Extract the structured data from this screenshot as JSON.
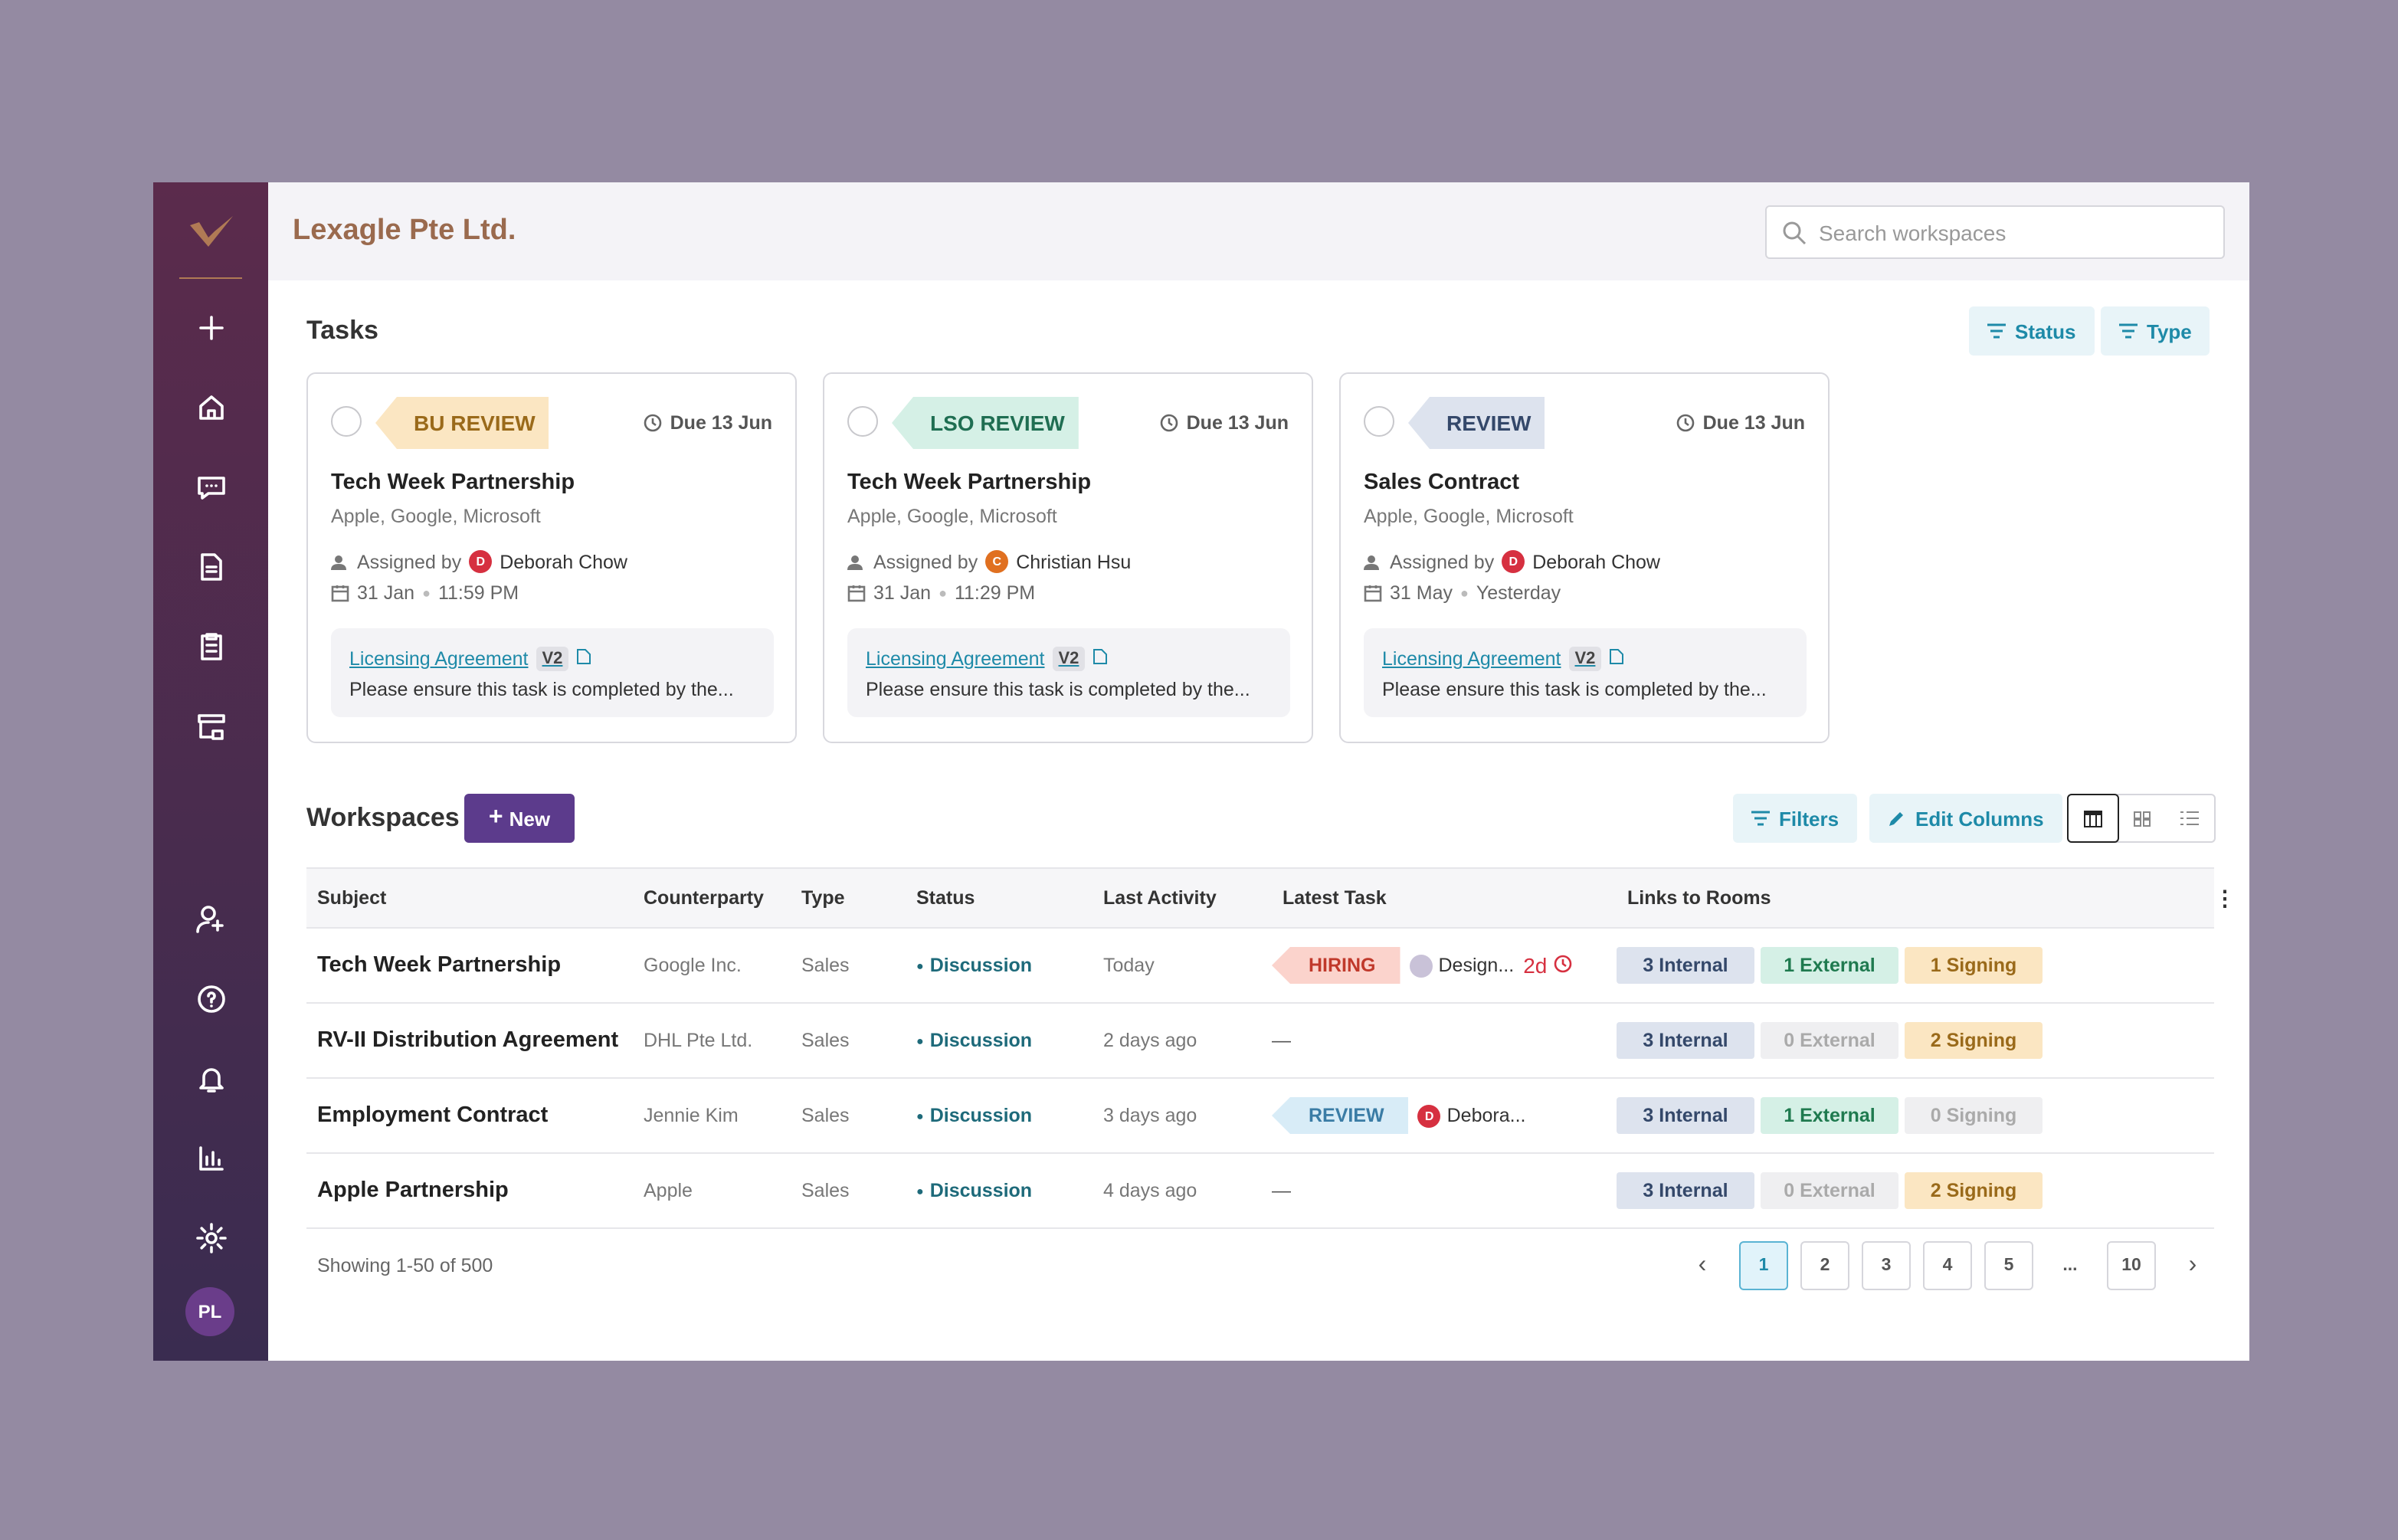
{
  "header": {
    "company": "Lexagle Pte Ltd.",
    "search_placeholder": "Search workspaces"
  },
  "sidebar": {
    "avatar": "PL"
  },
  "tasks": {
    "title": "Tasks",
    "filters": [
      "Status",
      "Type"
    ],
    "cards": [
      {
        "tag": {
          "label": "BU REVIEW",
          "bg": "#fbe6c2",
          "fg": "#9a6a1a"
        },
        "due": "Due 13 Jun",
        "title": "Tech Week Partnership",
        "parties": "Apple, Google, Microsoft",
        "assigned_label": "Assigned by",
        "avatar": {
          "initial": "D",
          "color": "#d63040"
        },
        "assignee": "Deborah Chow",
        "date": "31 Jan",
        "time": "11:59 PM",
        "doc": "Licensing Agreement",
        "version": "V2",
        "note": "Please ensure this task is completed by the..."
      },
      {
        "tag": {
          "label": "LSO REVIEW",
          "bg": "#d5f0e6",
          "fg": "#1f6e52"
        },
        "due": "Due 13 Jun",
        "title": "Tech Week Partnership",
        "parties": "Apple, Google, Microsoft",
        "assigned_label": "Assigned by",
        "avatar": {
          "initial": "C",
          "color": "#e07020"
        },
        "assignee": "Christian Hsu",
        "date": "31 Jan",
        "time": "11:29 PM",
        "doc": "Licensing Agreement",
        "version": "V2",
        "note": "Please ensure this task is completed by the..."
      },
      {
        "tag": {
          "label": "REVIEW",
          "bg": "#dde3ee",
          "fg": "#34486a"
        },
        "due": "Due 13 Jun",
        "title": "Sales Contract",
        "parties": "Apple, Google, Microsoft",
        "assigned_label": "Assigned by",
        "avatar": {
          "initial": "D",
          "color": "#d63040"
        },
        "assignee": "Deborah Chow",
        "date": "31 May",
        "time": "Yesterday",
        "doc": "Licensing Agreement",
        "version": "V2",
        "note": "Please ensure this task is completed by the..."
      }
    ]
  },
  "workspaces": {
    "title": "Workspaces",
    "new_button": "New",
    "filters_button": "Filters",
    "edit_button": "Edit Columns",
    "columns": [
      "Subject",
      "Counterparty",
      "Type",
      "Status",
      "Last Activity",
      "Latest Task",
      "Links to Rooms"
    ],
    "rows": [
      {
        "subject": "Tech Week Partnership",
        "counterparty": "Google Inc.",
        "type": "Sales",
        "status": "Discussion",
        "last_activity": "Today",
        "latest_task": {
          "tag": {
            "label": "HIRING",
            "bg": "#fbd3cc",
            "fg": "#c0392b"
          },
          "avatar": {
            "initial": "",
            "color": "#c9c2d8"
          },
          "assignee": "Design...",
          "due": "2d"
        },
        "links": [
          {
            "label": "3 Internal",
            "bg": "#dde3ee",
            "fg": "#34486a"
          },
          {
            "label": "1 External",
            "bg": "#d5f0e6",
            "fg": "#1f7a4f"
          },
          {
            "label": "1 Signing",
            "bg": "#fbe6c2",
            "fg": "#9a6a1a"
          }
        ]
      },
      {
        "subject": "RV-II Distribution Agreement",
        "counterparty": "DHL Pte Ltd.",
        "type": "Sales",
        "status": "Discussion",
        "last_activity": "2 days ago",
        "latest_task": "—",
        "links": [
          {
            "label": "3 Internal",
            "bg": "#dde3ee",
            "fg": "#34486a"
          },
          {
            "label": "0 External",
            "bg": "#efeff1",
            "fg": "#aaaaaa"
          },
          {
            "label": "2 Signing",
            "bg": "#fbe6c2",
            "fg": "#9a6a1a"
          }
        ]
      },
      {
        "subject": "Employment Contract",
        "counterparty": "Jennie Kim",
        "type": "Sales",
        "status": "Discussion",
        "last_activity": "3 days ago",
        "latest_task": {
          "tag": {
            "label": "REVIEW",
            "bg": "#d8ecf7",
            "fg": "#3a7ca5"
          },
          "avatar": {
            "initial": "D",
            "color": "#d63040"
          },
          "assignee": "Debora..."
        },
        "links": [
          {
            "label": "3 Internal",
            "bg": "#dde3ee",
            "fg": "#34486a"
          },
          {
            "label": "1 External",
            "bg": "#d5f0e6",
            "fg": "#1f7a4f"
          },
          {
            "label": "0 Signing",
            "bg": "#efeff1",
            "fg": "#aaaaaa"
          }
        ]
      },
      {
        "subject": "Apple Partnership",
        "counterparty": "Apple",
        "type": "Sales",
        "status": "Discussion",
        "last_activity": "4 days ago",
        "latest_task": "—",
        "links": [
          {
            "label": "3 Internal",
            "bg": "#dde3ee",
            "fg": "#34486a"
          },
          {
            "label": "0 External",
            "bg": "#efeff1",
            "fg": "#aaaaaa"
          },
          {
            "label": "2 Signing",
            "bg": "#fbe6c2",
            "fg": "#9a6a1a"
          }
        ]
      }
    ]
  },
  "pagination": {
    "showing": "Showing 1-50 of 500",
    "pages": [
      "1",
      "2",
      "3",
      "4",
      "5",
      "...",
      "10"
    ],
    "current": 0
  }
}
